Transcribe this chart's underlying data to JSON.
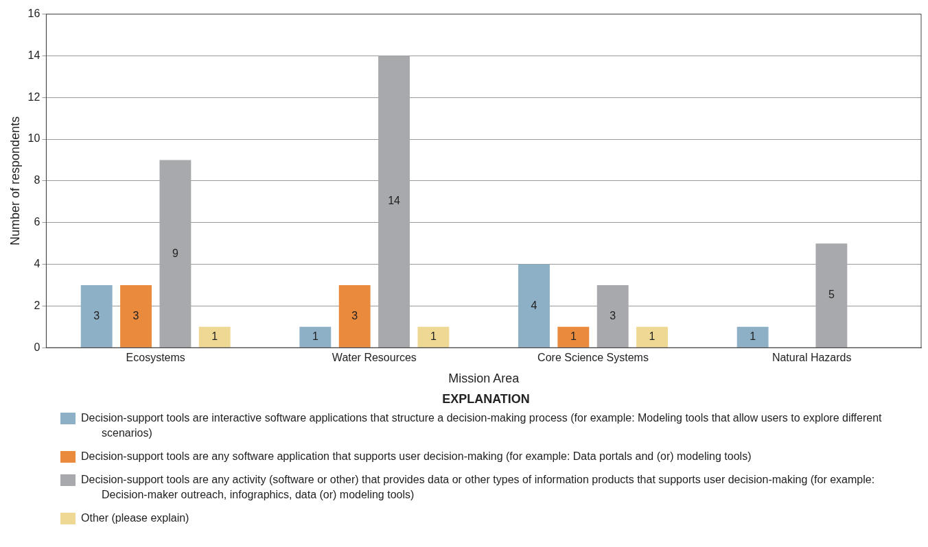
{
  "chart_data": {
    "type": "bar",
    "xlabel": "Mission Area",
    "ylabel": "Number of respondents",
    "legend_title": "EXPLANATION",
    "categories": [
      "Ecosystems",
      "Water Resources",
      "Core Science Systems",
      "Natural Hazards"
    ],
    "series": [
      {
        "name": "Decision-support tools are interactive software applications that structure a decision-making process (for example: Modeling tools that allow users to explore different scenarios)",
        "color": "#8db0c6",
        "values": [
          3,
          1,
          4,
          1
        ]
      },
      {
        "name": "Decision-support tools are any software application that supports user decision-making (for example: Data portals and (or) modeling tools)",
        "color": "#ea8a3c",
        "values": [
          3,
          3,
          1,
          null
        ]
      },
      {
        "name": "Decision-support tools are any activity (software or other) that provides data or other types of information products that supports user decision-making (for example: Decision-maker outreach, infographics, data (or) modeling tools)",
        "color": "#a7a9ac",
        "values": [
          9,
          14,
          3,
          5
        ]
      },
      {
        "name": "Other (please explain)",
        "color": "#eed893",
        "values": [
          1,
          1,
          1,
          null
        ]
      }
    ],
    "ylim": [
      0,
      16
    ],
    "yticks": [
      0,
      2,
      4,
      6,
      8,
      10,
      12,
      14,
      16
    ],
    "grid": "y",
    "legend": "bottom",
    "data_labels": true
  }
}
